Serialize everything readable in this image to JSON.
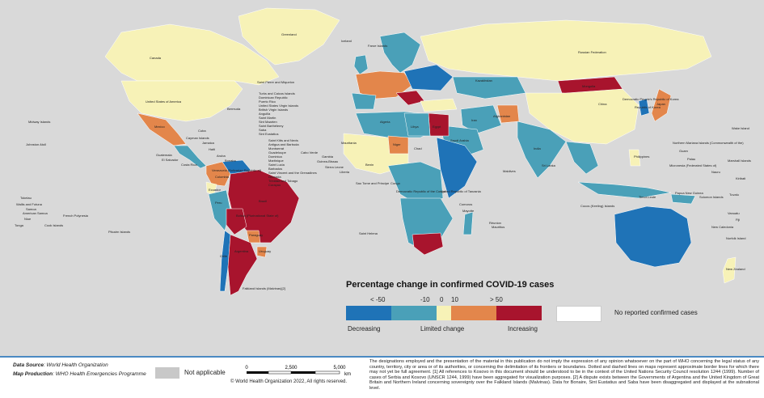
{
  "legend": {
    "title": "Percentage change in confirmed COVID-19 cases",
    "ticks": [
      "< -50",
      "-10",
      "0",
      "10",
      "> 50"
    ],
    "categories": {
      "decreasing": "Decreasing",
      "limited": "Limited change",
      "increasing": "Increasing"
    },
    "colors": {
      "strong_decrease": "#1f73b7",
      "decrease": "#4aa0b8",
      "limited": "#f7f2b7",
      "increase": "#e3864b",
      "strong_increase": "#a8142d",
      "no_reports": "#ffffff",
      "not_applicable": "#c8c8c8"
    },
    "no_reports_label": "No reported confirmed cases"
  },
  "labels": {
    "greenland": "Greenland",
    "iceland": "Iceland",
    "faroe": "Faroe Islands",
    "canada": "Canada",
    "usa": "United States of America",
    "saint_pierre": "Saint Pierre and Miquelon",
    "bermuda": "Bermuda",
    "caribbean_list": [
      "Turks and Caicos Islands",
      "Dominican Republic",
      "Puerto Rico",
      "United States Virgin Islands",
      "British Virgin Islands",
      "Anguilla",
      "Saint Martin",
      "Sint Maarten",
      "Saint Barthélemy",
      "Saba",
      "Sint Eustatius"
    ],
    "caribbean_list2": [
      "Saint Kitts and Nevis",
      "Antigua and Barbuda",
      "Montserrat",
      "Guadeloupe",
      "Dominica",
      "Martinique",
      "Saint Lucia",
      "Barbados",
      "Saint Vincent and the Grenadines",
      "Grenada",
      "Trinidad and Tobago",
      "Curaçao"
    ],
    "mexico": "Mexico",
    "cuba": "Cuba",
    "cayman": "Cayman Islands",
    "jamaica": "Jamaica",
    "haiti": "Haiti",
    "guatemala": "Guatemala",
    "el_salvador": "El Salvador",
    "costa_rica": "Costa Rica",
    "aruba": "Aruba",
    "bonaire": "Bonaire",
    "venezuela": "Venezuela (Bolivarian Republic of)",
    "colombia": "Colombia",
    "ecuador": "Ecuador",
    "peru": "Peru",
    "brazil": "Brazil",
    "bolivia": "Bolivia (Plurinational State of)",
    "paraguay": "Paraguay",
    "chile": "Chile",
    "argentina": "Argentina",
    "uruguay": "Uruguay",
    "falklands": "Falkland Islands (Malvinas)[2]",
    "midway": "Midway Islands",
    "johnston": "Johnston Atoll",
    "tokelau": "Tokelau",
    "wallis": "Wallis and Futuna",
    "samoa": "Samoa",
    "american_samoa": "American Samoa",
    "niue": "Niue",
    "cook": "Cook Islands",
    "tonga": "Tonga",
    "french_polynesia": "French Polynesia",
    "pitcairn": "Pitcairn Islands",
    "russia": "Russian Federation",
    "kazakhstan": "Kazakhstan",
    "mongolia": "Mongolia",
    "china": "China",
    "japan": "Japan",
    "korea_north": "Democratic People's Republic of Korea",
    "korea_south": "Republic of Korea",
    "cabo_verde": "Cabo Verde",
    "mauritania": "Mauritania",
    "chad": "Chad",
    "niger": "Niger",
    "sao_tome": "Sao Tome and Principe",
    "congo": "Congo",
    "drc": "Democratic Republic of the Congo",
    "tanzania": "United Republic of Tanzania",
    "guinea_bissau": "Guinea-Bissau",
    "gambia": "Gambia",
    "sierra_leone": "Sierra Leone",
    "liberia": "Liberia",
    "benin": "Benin",
    "saint_helena": "Saint Helena",
    "reunion": "Réunion",
    "mauritius": "Mauritius",
    "mayotte": "Mayotte",
    "comoros": "Comoros",
    "maldives": "Maldives",
    "sri_lanka": "Sri Lanka",
    "philippines": "Philippines",
    "guam": "Guam",
    "nmi": "Northern Mariana Islands (Commonwealth of the)",
    "micronesia": "Micronesia (Federated States of)",
    "marshall": "Marshall Islands",
    "nauru": "Nauru",
    "kiribati": "Kiribati",
    "tuvalu": "Tuvalu",
    "vanuatu": "Vanuatu",
    "new_caledonia": "New Caledonia",
    "fiji": "Fiji",
    "norfolk": "Norfolk Island",
    "new_zealand": "New Zealand",
    "solomon": "Solomon Islands",
    "png": "Papua New Guinea",
    "timor": "Timor-Leste",
    "cocos": "Cocos (Keeling) Islands",
    "palau": "Palau",
    "wake": "Wake Island",
    "afghanistan": "Afghanistan",
    "iran": "Iran",
    "egypt": "Egypt",
    "libya": "Libya",
    "algeria": "Algeria",
    "saudi": "Saudi Arabia",
    "india": "India"
  },
  "footer": {
    "data_source_label": "Data Source",
    "data_source_value": ": World Health Organization",
    "map_production_label": "Map Production",
    "map_production_value": ": WHO Health Emergencies Programme",
    "not_applicable": "Not applicable",
    "scale_ticks": [
      "0",
      "2,500",
      "5,000"
    ],
    "scale_unit": "km",
    "copyright": "© World Health Organization  2022, All rights reserved.",
    "disclaimer": "The designations employed and the presentation of the material in this publication do not imply the expression of any opinion whatsoever on the part of WHO concerning the legal status of any country, territory, city or area or of its authorities, or concerning the delimitation of its frontiers or boundaries. Dotted and dashed lines on maps represent approximate border lines for which there may not yet be full agreement. [1] All references to Kosovo in this document should be understood to be in the context of the United Nations Security Council resolution 1244 (1999). Number of cases of Serbia and Kosovo (UNSCR 1244, 1999) have been aggregated for visualization purposes. [2] A dispute exists between the Governments of Argentina and the United Kingdom of Great Britain and Northern Ireland concerning sovereignty over the Falkland Islands (Malvinas). Data for Bonaire, Sint Eustatius and Saba have been disaggregated and displayed at the subnational level."
  }
}
